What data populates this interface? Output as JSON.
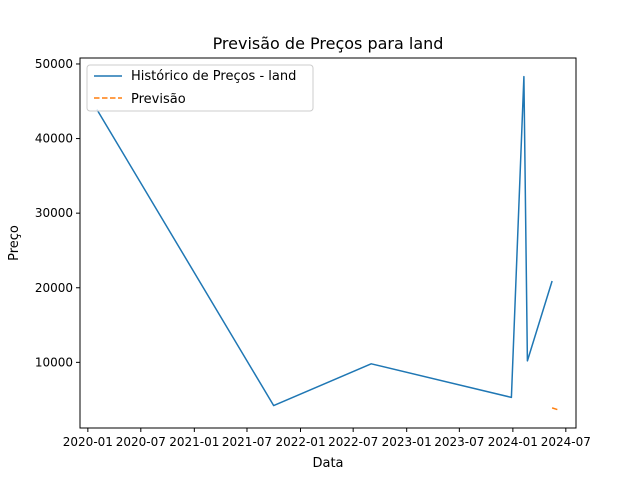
{
  "chart_data": {
    "type": "line",
    "title": "Previsão de Preços para land",
    "xlabel": "Data",
    "ylabel": "Preço",
    "xlim": [
      "2019-12-05",
      "2024-08-05"
    ],
    "ylim": [
      1200,
      50800
    ],
    "x_ticks": [
      {
        "value": "2020-01-01",
        "label": "2020-01"
      },
      {
        "value": "2020-07-01",
        "label": "2020-07"
      },
      {
        "value": "2021-01-01",
        "label": "2021-01"
      },
      {
        "value": "2021-07-01",
        "label": "2021-07"
      },
      {
        "value": "2022-01-01",
        "label": "2022-01"
      },
      {
        "value": "2022-07-01",
        "label": "2022-07"
      },
      {
        "value": "2023-01-01",
        "label": "2023-01"
      },
      {
        "value": "2023-07-01",
        "label": "2023-07"
      },
      {
        "value": "2024-01-01",
        "label": "2024-01"
      },
      {
        "value": "2024-07-01",
        "label": "2024-07"
      }
    ],
    "y_ticks": [
      {
        "value": 10000,
        "label": "10000"
      },
      {
        "value": 20000,
        "label": "20000"
      },
      {
        "value": 30000,
        "label": "30000"
      },
      {
        "value": 40000,
        "label": "40000"
      },
      {
        "value": 50000,
        "label": "50000"
      }
    ],
    "grid": false,
    "legend_position": "top-left",
    "series": [
      {
        "name": "Histórico de Preços - land",
        "color": "#1f77b4",
        "style": "solid",
        "points": [
          {
            "x": "2020-02-01",
            "y": 43900
          },
          {
            "x": "2021-10-01",
            "y": 4200
          },
          {
            "x": "2022-09-01",
            "y": 9800
          },
          {
            "x": "2023-12-27",
            "y": 5300
          },
          {
            "x": "2024-02-08",
            "y": 48300
          },
          {
            "x": "2024-02-20",
            "y": 10200
          },
          {
            "x": "2024-05-15",
            "y": 20900
          }
        ]
      },
      {
        "name": "Previsão",
        "color": "#ff7f0e",
        "style": "dashed",
        "points": [
          {
            "x": "2024-05-15",
            "y": 3900
          },
          {
            "x": "2024-06-08",
            "y": 3600
          }
        ]
      }
    ]
  }
}
